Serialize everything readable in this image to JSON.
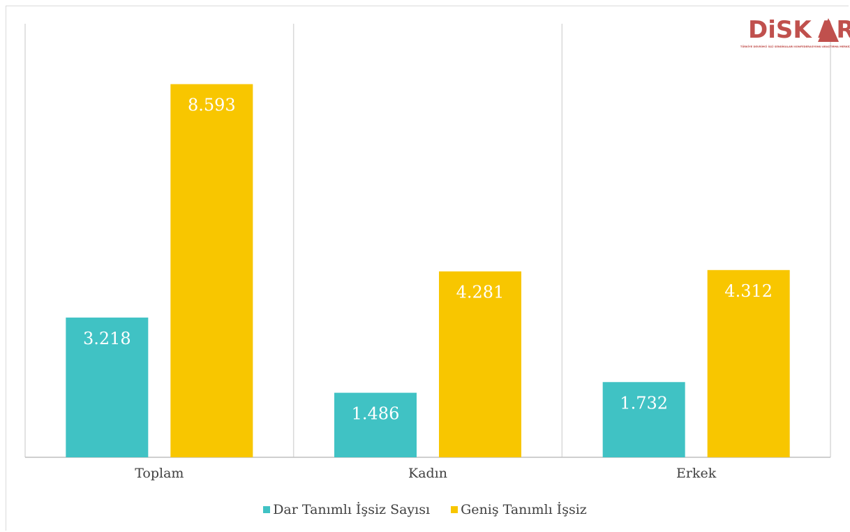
{
  "chart_data": {
    "type": "bar",
    "categories": [
      "Toplam",
      "Kadın",
      "Erkek"
    ],
    "series": [
      {
        "name": "Dar Tanımlı İşsiz Sayısı",
        "values": [
          3.218,
          1.486,
          1.732
        ],
        "labels": [
          "3.218",
          "1.486",
          "1.732"
        ],
        "color": "#40c2c4"
      },
      {
        "name": "Geniş Tanımlı İşsiz",
        "values": [
          8.593,
          4.281,
          4.312
        ],
        "labels": [
          "8.593",
          "4.281",
          "4.312"
        ],
        "color": "#f8c600"
      }
    ],
    "ylim": [
      0,
      10
    ],
    "grid": "vertical category separators",
    "legend": "bottom"
  },
  "logo": {
    "text_1": "DiSK",
    "text_2": "AR",
    "subtitle": "TÜRKİYE DEVRİMCİ İŞÇİ SENDİKALARI KONFEDERASYONU ARAŞTIRMA MERKEZİ",
    "color": "#c0504d"
  }
}
